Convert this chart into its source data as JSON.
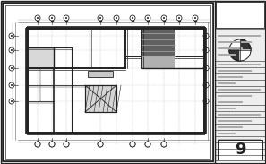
{
  "bg_color": "#ffffff",
  "dc": "#222222",
  "lc": "#666666",
  "lc2": "#aaaaaa",
  "gc": "#cccccc",
  "mc": "#999999",
  "fig_width": 2.97,
  "fig_height": 1.83,
  "dpi": 100,
  "sheet_bg": "#f0f0f0",
  "wall_bg": "#ffffff",
  "room_gray": "#d0d0d0",
  "dark_room": "#888888",
  "stair_gray": "#bbbbbb"
}
